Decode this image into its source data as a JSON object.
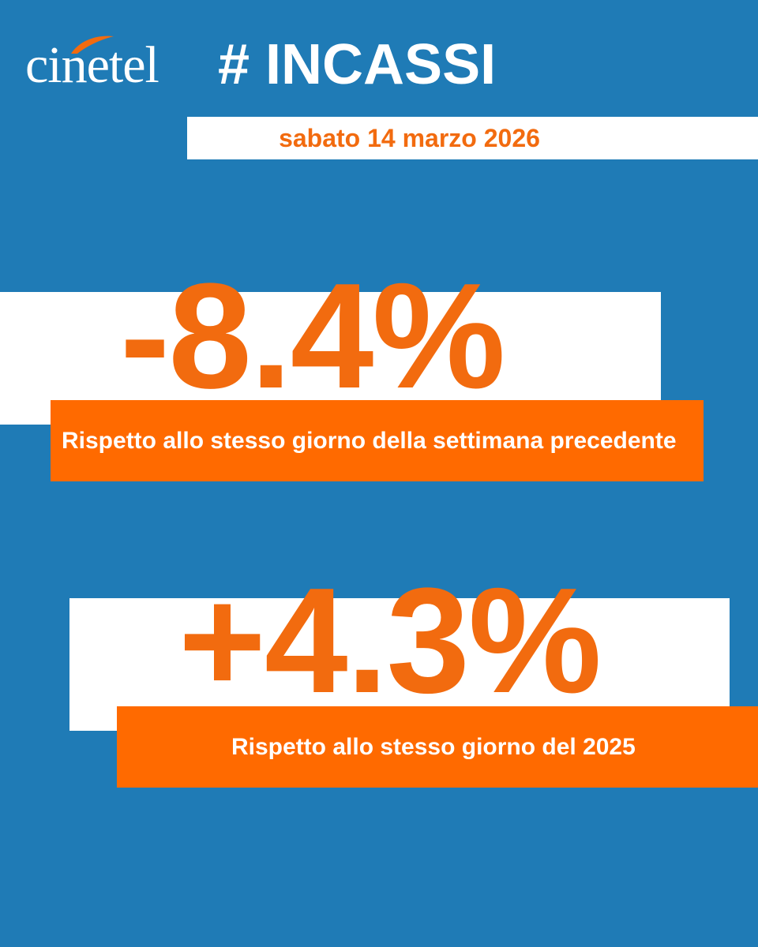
{
  "header": {
    "logo_text": "cinetel",
    "title": "# INCASSI"
  },
  "date": "sabato 14 marzo 2026",
  "stats": [
    {
      "value": "-8.4%",
      "caption": "Rispetto allo stesso giorno della settimana precedente"
    },
    {
      "value": "+4.3%",
      "caption": "Rispetto allo stesso giorno del 2025"
    }
  ],
  "colors": {
    "background": "#1f7bb6",
    "accent": "#f26b0f",
    "caption_bg": "#ff6a00",
    "white": "#ffffff"
  }
}
